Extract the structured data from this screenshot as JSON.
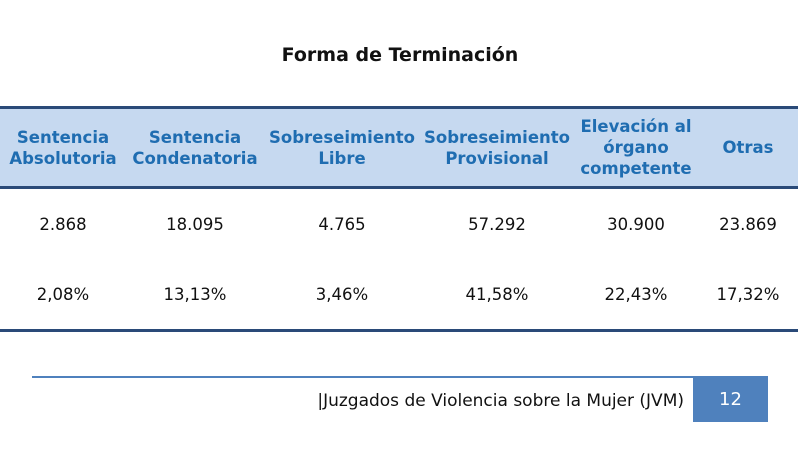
{
  "title": "Forma de Terminación",
  "headers": [
    "Sentencia Absolutoria",
    "Sentencia Condenatoria",
    "Sobreseimiento Libre",
    "Sobreseimiento Provisional",
    "Elevación al órgano competente",
    "Otras"
  ],
  "rows": [
    [
      "2.868",
      "18.095",
      "4.765",
      "57.292",
      "30.900",
      "23.869"
    ],
    [
      "2,08%",
      "13,13%",
      "3,46%",
      "41,58%",
      "22,43%",
      "17,32%"
    ]
  ],
  "footer": {
    "text": "|Juzgados de Violencia sobre la Mujer (JVM)",
    "page": "12"
  },
  "colors": {
    "header_bg": "#c6d9f0",
    "header_text": "#1f6db1",
    "border": "#2a4a78",
    "accent": "#4f81bd"
  }
}
